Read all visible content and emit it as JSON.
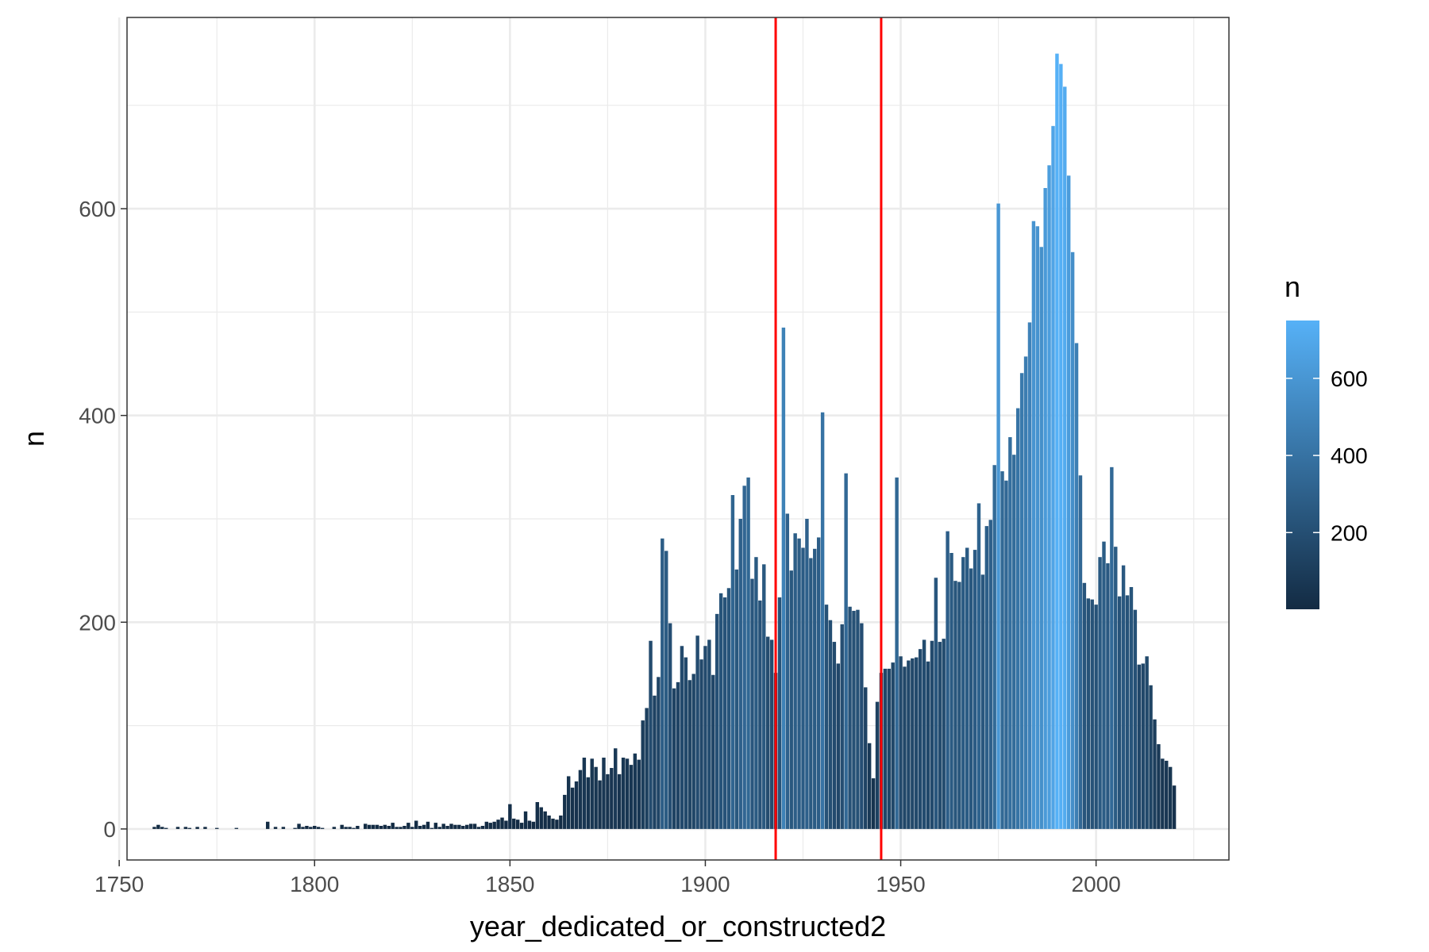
{
  "chart_data": {
    "type": "bar",
    "xlabel": "year_dedicated_or_constructed2",
    "ylabel": "n",
    "xlim": [
      1752,
      2034
    ],
    "ylim": [
      -30,
      785
    ],
    "x_ticks": [
      1750,
      1800,
      1850,
      1900,
      1950,
      2000
    ],
    "x_minor_ticks": [
      1775,
      1825,
      1875,
      1925,
      1975,
      2025
    ],
    "y_ticks": [
      0,
      200,
      400,
      600
    ],
    "y_minor_ticks": [
      100,
      300,
      500,
      700
    ],
    "grid": true,
    "legend": {
      "title": "n",
      "position": "right",
      "ticks": [
        200,
        400,
        600
      ],
      "range": [
        1,
        750
      ],
      "low_color": "#132b43",
      "high_color": "#56b1f7"
    },
    "vlines": [
      1918,
      1945
    ],
    "vline_color": "#ff0000",
    "x": [
      1759,
      1760,
      1761,
      1762,
      1765,
      1767,
      1768,
      1770,
      1772,
      1775,
      1780,
      1788,
      1790,
      1792,
      1795,
      1796,
      1797,
      1798,
      1799,
      1800,
      1801,
      1802,
      1805,
      1807,
      1808,
      1809,
      1810,
      1811,
      1813,
      1814,
      1815,
      1816,
      1817,
      1818,
      1819,
      1820,
      1821,
      1822,
      1823,
      1824,
      1825,
      1826,
      1827,
      1828,
      1829,
      1830,
      1831,
      1832,
      1833,
      1834,
      1835,
      1836,
      1837,
      1838,
      1839,
      1840,
      1841,
      1842,
      1843,
      1844,
      1845,
      1846,
      1847,
      1848,
      1849,
      1850,
      1851,
      1852,
      1853,
      1854,
      1855,
      1856,
      1857,
      1858,
      1859,
      1860,
      1861,
      1862,
      1863,
      1864,
      1865,
      1866,
      1867,
      1868,
      1869,
      1870,
      1871,
      1872,
      1873,
      1874,
      1875,
      1876,
      1877,
      1878,
      1879,
      1880,
      1881,
      1882,
      1883,
      1884,
      1885,
      1886,
      1887,
      1888,
      1889,
      1890,
      1891,
      1892,
      1893,
      1894,
      1895,
      1896,
      1897,
      1898,
      1899,
      1900,
      1901,
      1902,
      1903,
      1904,
      1905,
      1906,
      1907,
      1908,
      1909,
      1910,
      1911,
      1912,
      1913,
      1914,
      1915,
      1916,
      1917,
      1918,
      1919,
      1920,
      1921,
      1922,
      1923,
      1924,
      1925,
      1926,
      1927,
      1928,
      1929,
      1930,
      1931,
      1932,
      1933,
      1934,
      1935,
      1936,
      1937,
      1938,
      1939,
      1940,
      1941,
      1942,
      1943,
      1944,
      1945,
      1946,
      1947,
      1948,
      1949,
      1950,
      1951,
      1952,
      1953,
      1954,
      1955,
      1956,
      1957,
      1958,
      1959,
      1960,
      1961,
      1962,
      1963,
      1964,
      1965,
      1966,
      1967,
      1968,
      1969,
      1970,
      1971,
      1972,
      1973,
      1974,
      1975,
      1976,
      1977,
      1978,
      1979,
      1980,
      1981,
      1982,
      1983,
      1984,
      1985,
      1986,
      1987,
      1988,
      1989,
      1990,
      1991,
      1992,
      1993,
      1994,
      1995,
      1996,
      1997,
      1998,
      1999,
      2000,
      2001,
      2002,
      2003,
      2004,
      2005,
      2006,
      2007,
      2008,
      2009,
      2010,
      2011,
      2012,
      2013,
      2014,
      2015,
      2016,
      2017,
      2018,
      2019,
      2020
    ],
    "values": [
      2,
      4,
      2,
      1,
      2,
      2,
      1,
      2,
      2,
      1,
      1,
      7,
      2,
      2,
      1,
      5,
      2,
      3,
      2,
      3,
      2,
      1,
      2,
      4,
      2,
      2,
      1,
      3,
      5,
      4,
      4,
      4,
      3,
      4,
      3,
      6,
      2,
      2,
      3,
      6,
      2,
      8,
      3,
      4,
      7,
      1,
      6,
      2,
      5,
      3,
      5,
      4,
      4,
      3,
      4,
      5,
      5,
      2,
      3,
      7,
      6,
      7,
      9,
      11,
      8,
      24,
      10,
      9,
      6,
      17,
      8,
      7,
      26,
      21,
      17,
      13,
      10,
      9,
      13,
      33,
      51,
      40,
      46,
      57,
      69,
      50,
      68,
      60,
      47,
      69,
      53,
      59,
      78,
      53,
      69,
      68,
      62,
      73,
      67,
      105,
      117,
      182,
      129,
      147,
      281,
      269,
      199,
      136,
      142,
      177,
      166,
      144,
      150,
      187,
      164,
      177,
      183,
      149,
      208,
      228,
      224,
      233,
      323,
      251,
      300,
      332,
      340,
      242,
      263,
      221,
      256,
      186,
      183,
      151,
      224,
      485,
      305,
      250,
      286,
      281,
      272,
      300,
      262,
      271,
      282,
      403,
      217,
      202,
      181,
      160,
      198,
      344,
      215,
      211,
      212,
      199,
      137,
      83,
      49,
      123,
      151,
      155,
      155,
      161,
      340,
      167,
      157,
      163,
      165,
      166,
      174,
      183,
      162,
      182,
      243,
      181,
      184,
      288,
      267,
      240,
      239,
      263,
      272,
      252,
      270,
      315,
      246,
      293,
      299,
      352,
      605,
      346,
      337,
      379,
      362,
      407,
      441,
      457,
      490,
      588,
      583,
      563,
      620,
      642,
      680,
      750,
      740,
      718,
      632,
      558,
      470,
      342,
      238,
      223,
      222,
      217,
      263,
      278,
      257,
      350,
      273,
      225,
      255,
      226,
      234,
      212,
      159,
      160,
      167,
      139,
      106,
      82,
      68,
      66,
      60,
      42
    ]
  }
}
